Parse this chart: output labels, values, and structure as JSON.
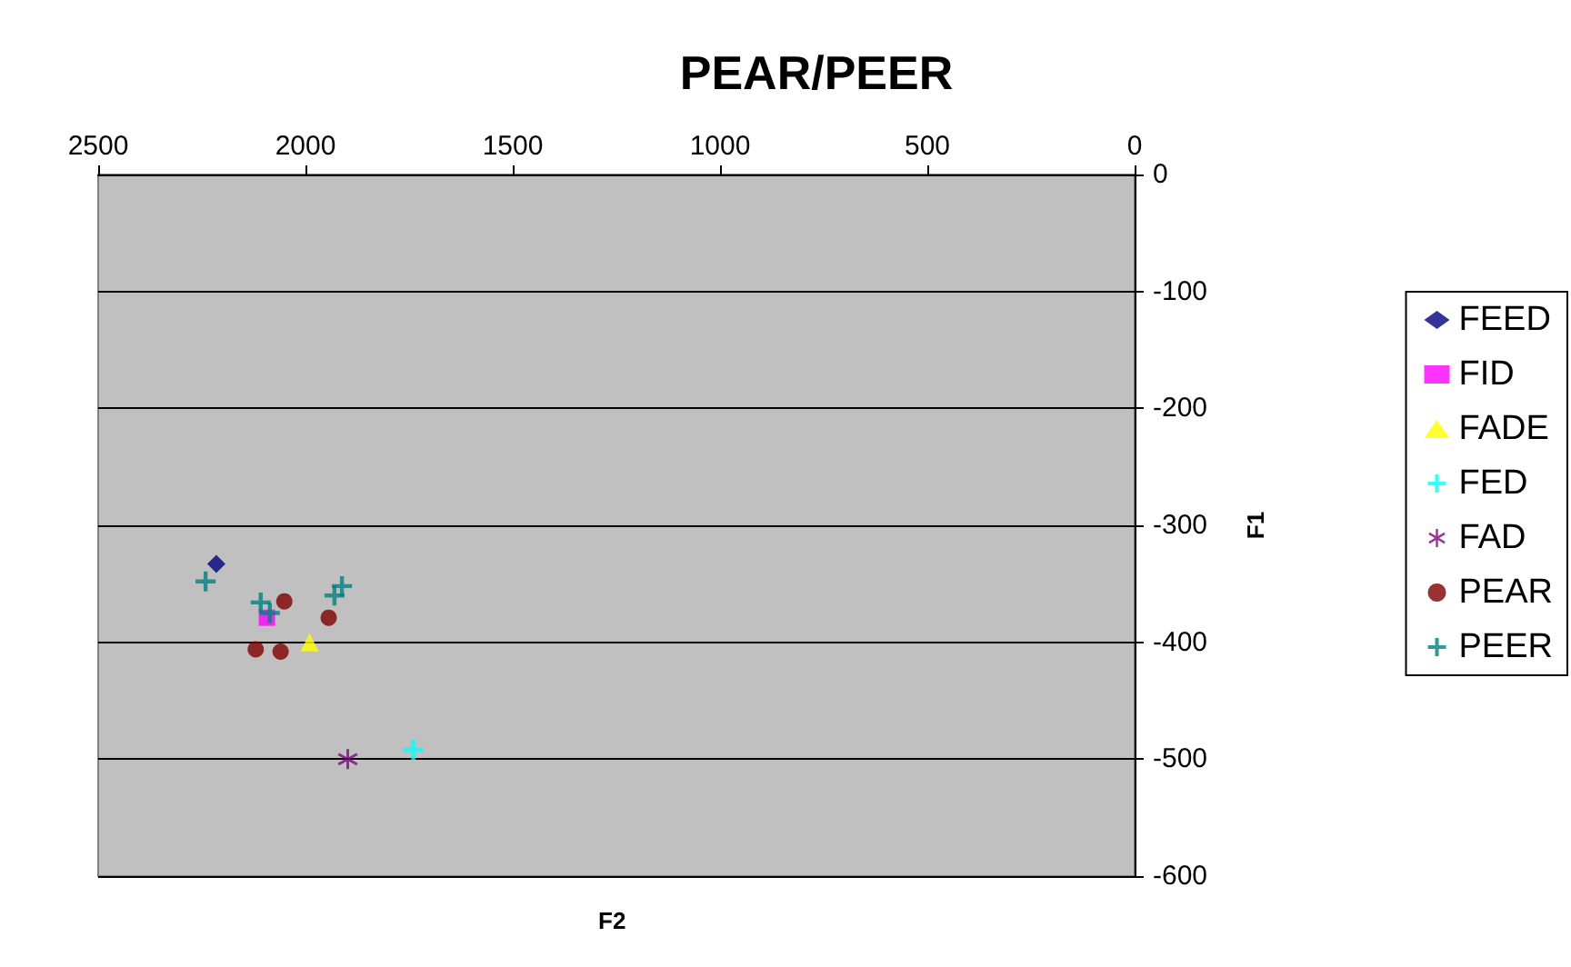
{
  "chart_data": {
    "type": "scatter",
    "title": "PEAR/PEER",
    "xlabel": "F2",
    "ylabel": "F1",
    "xlim": [
      2500,
      0
    ],
    "xticks": [
      2500,
      2000,
      1500,
      1000,
      500,
      0
    ],
    "ylim": [
      -600,
      0
    ],
    "yticks": [
      -600,
      -500,
      -400,
      -300,
      -200,
      -100,
      0
    ],
    "grid": "y",
    "legend": "right",
    "series": [
      {
        "name": "FEED",
        "color": "#000080",
        "marker": "diamond",
        "x": [
          2215
        ],
        "values": [
          -333
        ]
      },
      {
        "name": "FID",
        "color": "#ff00ff",
        "marker": "square",
        "x": [
          2093
        ],
        "values": [
          -379
        ]
      },
      {
        "name": "FADE",
        "color": "#ffff00",
        "marker": "triangle",
        "x": [
          1990
        ],
        "values": [
          -400
        ]
      },
      {
        "name": "FED",
        "color": "#00ffff",
        "marker": "cross",
        "x": [
          1740
        ],
        "values": [
          -492
        ]
      },
      {
        "name": "FAD",
        "color": "#800080",
        "marker": "star",
        "x": [
          1898
        ],
        "values": [
          -500
        ]
      },
      {
        "name": "PEAR",
        "color": "#800000",
        "marker": "circle",
        "x": [
          2051,
          1944,
          2120,
          2060
        ],
        "values": [
          -365,
          -379,
          -406,
          -408
        ]
      },
      {
        "name": "PEER",
        "color": "#008080",
        "marker": "cross",
        "x": [
          2241,
          2108,
          2086,
          1930,
          1912
        ],
        "values": [
          -348,
          -366,
          -375,
          -360,
          -352
        ]
      }
    ]
  }
}
